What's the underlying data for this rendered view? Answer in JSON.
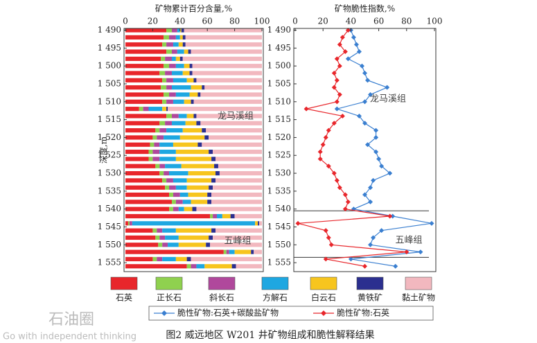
{
  "charts": [
    {
      "type": "stacked-barh",
      "xlabel": "矿物累计百分含量,%",
      "ylabel": "深度,m",
      "xlim": [
        0,
        100
      ],
      "xticks": [
        0,
        20,
        40,
        60,
        80,
        100
      ],
      "ylim": [
        1489.5,
        1557.5
      ],
      "yticks": [
        {
          "value": 1490,
          "label": "1 490"
        },
        {
          "value": 1495,
          "label": "1 495"
        },
        {
          "value": 1500,
          "label": "1 500"
        },
        {
          "value": 1505,
          "label": "1 505"
        },
        {
          "value": 1510,
          "label": "1 510"
        },
        {
          "value": 1515,
          "label": "1 515"
        },
        {
          "value": 1520,
          "label": "1 520"
        },
        {
          "value": 1525,
          "label": "1 525"
        },
        {
          "value": 1530,
          "label": "1 530"
        },
        {
          "value": 1535,
          "label": "1 535"
        },
        {
          "value": 1540,
          "label": "1 540"
        },
        {
          "value": 1545,
          "label": "1 545"
        },
        {
          "value": 1550,
          "label": "1 550"
        },
        {
          "value": 1555,
          "label": "1 555"
        }
      ],
      "formations": [
        "龙马溪组",
        "五峰组"
      ],
      "y": [
        1490,
        1492,
        1494,
        1496,
        1498,
        1500,
        1502,
        1504,
        1506,
        1508,
        1510,
        1512,
        1514,
        1516,
        1518,
        1520,
        1522,
        1524,
        1526,
        1528,
        1530,
        1532,
        1534,
        1536,
        1538,
        1540,
        1542,
        1544,
        1546,
        1548,
        1550,
        1552,
        1554,
        1556
      ],
      "series": [
        {
          "name": "石英",
          "color": "#e8262b",
          "values": [
            30,
            28,
            27,
            30,
            26,
            28,
            25,
            27,
            26,
            28,
            27,
            10,
            30,
            25,
            22,
            20,
            18,
            17,
            17,
            22,
            25,
            27,
            29,
            32,
            34,
            32,
            62,
            2,
            20,
            22,
            24,
            72,
            20,
            45
          ]
        },
        {
          "name": "正长石",
          "color": "#8fd14f",
          "values": [
            4,
            4,
            3,
            4,
            3,
            4,
            4,
            3,
            4,
            4,
            3,
            3,
            4,
            4,
            3,
            3,
            3,
            3,
            3,
            3,
            3,
            3,
            3,
            3,
            3,
            3,
            2,
            1,
            3,
            3,
            3,
            2,
            3,
            3
          ]
        },
        {
          "name": "斜长石",
          "color": "#b0489c",
          "values": [
            4,
            5,
            5,
            4,
            5,
            5,
            5,
            5,
            4,
            5,
            5,
            4,
            5,
            5,
            5,
            5,
            4,
            5,
            5,
            4,
            4,
            5,
            5,
            5,
            5,
            4,
            3,
            2,
            4,
            4,
            4,
            2,
            4,
            4
          ]
        },
        {
          "name": "方解石",
          "color": "#1ea7e1",
          "values": [
            2,
            3,
            4,
            5,
            3,
            6,
            8,
            10,
            14,
            10,
            8,
            10,
            6,
            10,
            12,
            12,
            10,
            12,
            12,
            12,
            14,
            10,
            8,
            6,
            6,
            4,
            4,
            90,
            10,
            10,
            8,
            4,
            10,
            6
          ]
        },
        {
          "name": "白云石",
          "color": "#f7c51e",
          "values": [
            1,
            2,
            3,
            3,
            3,
            4,
            5,
            5,
            8,
            6,
            5,
            3,
            5,
            8,
            14,
            18,
            18,
            24,
            26,
            24,
            20,
            18,
            16,
            14,
            12,
            6,
            6,
            2,
            26,
            22,
            20,
            12,
            8,
            20
          ]
        },
        {
          "name": "黄铁矿",
          "color": "#2b2f8f",
          "values": [
            2,
            2,
            2,
            2,
            2,
            2,
            2,
            2,
            2,
            2,
            2,
            1,
            2,
            3,
            3,
            3,
            3,
            3,
            3,
            3,
            3,
            3,
            3,
            3,
            3,
            3,
            3,
            1,
            3,
            3,
            3,
            2,
            3,
            3
          ]
        },
        {
          "name": "黏土矿物",
          "color": "#f2b8bf",
          "values": [
            57,
            56,
            56,
            52,
            58,
            51,
            51,
            48,
            42,
            45,
            50,
            69,
            48,
            45,
            41,
            39,
            44,
            36,
            34,
            32,
            31,
            34,
            36,
            37,
            37,
            48,
            20,
            2,
            34,
            36,
            38,
            6,
            52,
            19
          ]
        }
      ]
    },
    {
      "type": "line-vertical",
      "xlabel": "矿物脆性指数,%",
      "xlim": [
        0,
        100
      ],
      "xticks": [
        0,
        20,
        40,
        60,
        80,
        100
      ],
      "ylim": [
        1489.5,
        1557.5
      ],
      "yticks": [
        {
          "value": 1490,
          "label": "1 490"
        },
        {
          "value": 1495,
          "label": "1 495"
        },
        {
          "value": 1500,
          "label": "1 500"
        },
        {
          "value": 1505,
          "label": "1 505"
        },
        {
          "value": 1510,
          "label": "1 510"
        },
        {
          "value": 1515,
          "label": "1 515"
        },
        {
          "value": 1520,
          "label": "1 520"
        },
        {
          "value": 1525,
          "label": "1 525"
        },
        {
          "value": 1530,
          "label": "1 530"
        },
        {
          "value": 1535,
          "label": "1 535"
        },
        {
          "value": 1540,
          "label": "1 540"
        },
        {
          "value": 1545,
          "label": "1 545"
        },
        {
          "value": 1550,
          "label": "1 550"
        },
        {
          "value": 1555,
          "label": "1 555"
        }
      ],
      "formations": [
        "龙马溪组",
        "五峰组"
      ],
      "boundaries": [
        1540.5,
        1553.5
      ],
      "y": [
        1490,
        1492,
        1494,
        1496,
        1498,
        1500,
        1502,
        1504,
        1506,
        1508,
        1510,
        1512,
        1514,
        1516,
        1518,
        1520,
        1522,
        1524,
        1526,
        1528,
        1530,
        1532,
        1534,
        1536,
        1538,
        1540,
        1542,
        1544,
        1546,
        1548,
        1550,
        1552,
        1554,
        1556
      ],
      "series": [
        {
          "name": "脆性矿物:石英+碳酸盐矿物",
          "color": "#3a7fd0",
          "values": [
            40,
            42,
            44,
            46,
            38,
            48,
            50,
            52,
            66,
            54,
            50,
            30,
            46,
            50,
            58,
            58,
            52,
            58,
            60,
            62,
            68,
            56,
            54,
            50,
            54,
            42,
            70,
            98,
            62,
            56,
            54,
            90,
            40,
            72
          ]
        },
        {
          "name": "脆性矿物:石英",
          "color": "#e8262b",
          "values": [
            38,
            34,
            32,
            36,
            30,
            32,
            28,
            30,
            28,
            32,
            30,
            8,
            34,
            28,
            24,
            22,
            20,
            18,
            18,
            24,
            28,
            30,
            32,
            36,
            38,
            36,
            68,
            2,
            22,
            24,
            26,
            80,
            22,
            50
          ]
        }
      ]
    }
  ],
  "caption": "图2   威远地区 W201 井矿物组成和脆性解释结果",
  "watermark": [
    "石油圈",
    "Go with independent thinking"
  ]
}
